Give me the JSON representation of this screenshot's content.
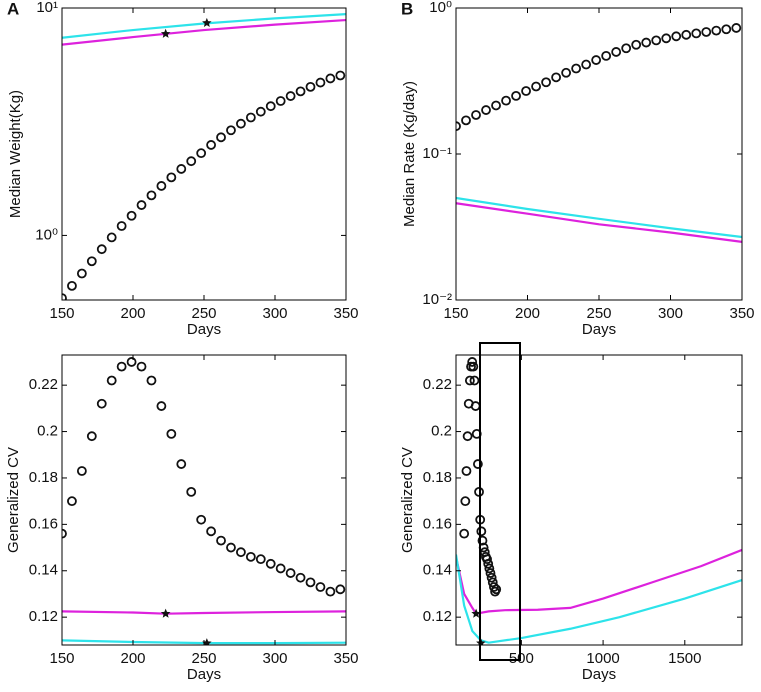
{
  "chart_data": [
    {
      "type": "line",
      "panel_label": "A",
      "xlabel": "Days",
      "ylabel": "Median Weight(Kg)",
      "xlim": [
        150,
        350
      ],
      "xticks": [
        150,
        200,
        250,
        300,
        350
      ],
      "ylog": true,
      "ylim": [
        0.52,
        10
      ],
      "yticks": [
        {
          "value": 1,
          "label": "10⁰"
        },
        {
          "value": 10,
          "label": "10¹"
        }
      ],
      "series": [
        {
          "style": "line",
          "color": "#2de3ea",
          "x": [
            150,
            200,
            250,
            300,
            350
          ],
          "values": [
            7.4,
            8.0,
            8.55,
            9.0,
            9.4
          ]
        },
        {
          "style": "line",
          "color": "#dd22dd",
          "x": [
            150,
            200,
            250,
            300,
            350
          ],
          "values": [
            6.9,
            7.45,
            8.0,
            8.45,
            8.85
          ]
        },
        {
          "style": "star",
          "color": "#111",
          "x": [
            223,
            252
          ],
          "values": [
            7.7,
            8.6
          ]
        },
        {
          "style": "circles",
          "color": "#111",
          "x": [
            150,
            157,
            164,
            171,
            178,
            185,
            192,
            199,
            206,
            213,
            220,
            227,
            234,
            241,
            248,
            255,
            262,
            269,
            276,
            283,
            290,
            297,
            304,
            311,
            318,
            325,
            332,
            339,
            346
          ],
          "values": [
            0.53,
            0.6,
            0.68,
            0.77,
            0.87,
            0.98,
            1.1,
            1.22,
            1.36,
            1.5,
            1.65,
            1.8,
            1.96,
            2.12,
            2.3,
            2.5,
            2.7,
            2.9,
            3.1,
            3.3,
            3.5,
            3.7,
            3.9,
            4.1,
            4.3,
            4.5,
            4.7,
            4.9,
            5.05
          ]
        }
      ]
    },
    {
      "type": "line",
      "panel_label": "B",
      "xlabel": "Days",
      "ylabel": "Median Rate (Kg/day)",
      "xlim": [
        150,
        350
      ],
      "xticks": [
        150,
        200,
        250,
        300,
        350
      ],
      "ylog": true,
      "ylim": [
        0.01,
        1
      ],
      "yticks": [
        {
          "value": 0.01,
          "label": "10⁻²"
        },
        {
          "value": 0.1,
          "label": "10⁻¹"
        },
        {
          "value": 1,
          "label": "10⁰"
        }
      ],
      "series": [
        {
          "style": "line",
          "color": "#2de3ea",
          "x": [
            150,
            200,
            250,
            300,
            350
          ],
          "values": [
            0.05,
            0.042,
            0.036,
            0.031,
            0.027
          ]
        },
        {
          "style": "line",
          "color": "#dd22dd",
          "x": [
            150,
            200,
            250,
            300,
            350
          ],
          "values": [
            0.046,
            0.039,
            0.033,
            0.029,
            0.025
          ]
        },
        {
          "style": "circles",
          "color": "#111",
          "x": [
            150,
            157,
            164,
            171,
            178,
            185,
            192,
            199,
            206,
            213,
            220,
            227,
            234,
            241,
            248,
            255,
            262,
            269,
            276,
            283,
            290,
            297,
            304,
            311,
            318,
            325,
            332,
            339,
            346
          ],
          "values": [
            0.155,
            0.17,
            0.185,
            0.2,
            0.215,
            0.232,
            0.25,
            0.27,
            0.29,
            0.31,
            0.335,
            0.36,
            0.385,
            0.41,
            0.44,
            0.47,
            0.5,
            0.53,
            0.56,
            0.58,
            0.6,
            0.62,
            0.64,
            0.655,
            0.67,
            0.685,
            0.7,
            0.715,
            0.73
          ]
        }
      ]
    },
    {
      "type": "line",
      "xlabel": "Days",
      "ylabel": "Generalized CV",
      "xlim": [
        150,
        350
      ],
      "xticks": [
        150,
        200,
        250,
        300,
        350
      ],
      "ylim": [
        0.108,
        0.233
      ],
      "yticks": [
        0.12,
        0.14,
        0.16,
        0.18,
        0.2,
        0.22
      ],
      "series": [
        {
          "style": "line",
          "color": "#dd22dd",
          "x": [
            150,
            200,
            223,
            250,
            300,
            350
          ],
          "values": [
            0.1225,
            0.122,
            0.1215,
            0.1218,
            0.1222,
            0.1225
          ]
        },
        {
          "style": "line",
          "color": "#2de3ea",
          "x": [
            150,
            200,
            252,
            300,
            350
          ],
          "values": [
            0.11,
            0.1093,
            0.1088,
            0.1088,
            0.109
          ]
        },
        {
          "style": "star",
          "color": "#111",
          "x": [
            223,
            252
          ],
          "values": [
            0.1215,
            0.1088
          ]
        },
        {
          "style": "circles",
          "color": "#111",
          "x": [
            150,
            157,
            164,
            171,
            178,
            185,
            192,
            199,
            206,
            213,
            220,
            227,
            234,
            241,
            248,
            255,
            262,
            269,
            276,
            283,
            290,
            297,
            304,
            311,
            318,
            325,
            332,
            339,
            346
          ],
          "values": [
            0.156,
            0.17,
            0.183,
            0.198,
            0.212,
            0.222,
            0.228,
            0.23,
            0.228,
            0.222,
            0.211,
            0.199,
            0.186,
            0.174,
            0.162,
            0.157,
            0.153,
            0.15,
            0.148,
            0.146,
            0.145,
            0.143,
            0.141,
            0.139,
            0.137,
            0.135,
            0.133,
            0.131,
            0.132
          ]
        }
      ]
    },
    {
      "type": "line",
      "xlabel": "Days",
      "ylabel": "Generalized CV",
      "xlim": [
        100,
        1850
      ],
      "xticks": [
        500,
        1000,
        1500
      ],
      "ylim": [
        0.108,
        0.233
      ],
      "yticks": [
        0.12,
        0.14,
        0.16,
        0.18,
        0.2,
        0.22
      ],
      "series": [
        {
          "style": "line",
          "color": "#dd22dd",
          "x": [
            100,
            150,
            200,
            223,
            300,
            400,
            600,
            800,
            1000,
            1300,
            1600,
            1850
          ],
          "values": [
            0.146,
            0.13,
            0.124,
            0.1215,
            0.1225,
            0.123,
            0.1232,
            0.124,
            0.128,
            0.135,
            0.142,
            0.149
          ]
        },
        {
          "style": "line",
          "color": "#2de3ea",
          "x": [
            100,
            150,
            200,
            252,
            300,
            500,
            800,
            1100,
            1500,
            1850
          ],
          "values": [
            0.147,
            0.125,
            0.114,
            0.11,
            0.109,
            0.111,
            0.115,
            0.12,
            0.128,
            0.136
          ]
        },
        {
          "style": "star",
          "color": "#111",
          "x": [
            223,
            252
          ],
          "values": [
            0.1215,
            0.1088
          ]
        },
        {
          "style": "circles",
          "color": "#111",
          "x": [
            150,
            157,
            164,
            171,
            178,
            185,
            192,
            199,
            206,
            213,
            220,
            227,
            234,
            241,
            248,
            255,
            262,
            269,
            276,
            283,
            290,
            297,
            304,
            311,
            318,
            325,
            332,
            339,
            346
          ],
          "values": [
            0.156,
            0.17,
            0.183,
            0.198,
            0.212,
            0.222,
            0.228,
            0.23,
            0.228,
            0.222,
            0.211,
            0.199,
            0.186,
            0.174,
            0.162,
            0.157,
            0.153,
            0.15,
            0.148,
            0.146,
            0.145,
            0.143,
            0.141,
            0.139,
            0.137,
            0.135,
            0.133,
            0.131,
            0.132
          ]
        }
      ]
    }
  ]
}
